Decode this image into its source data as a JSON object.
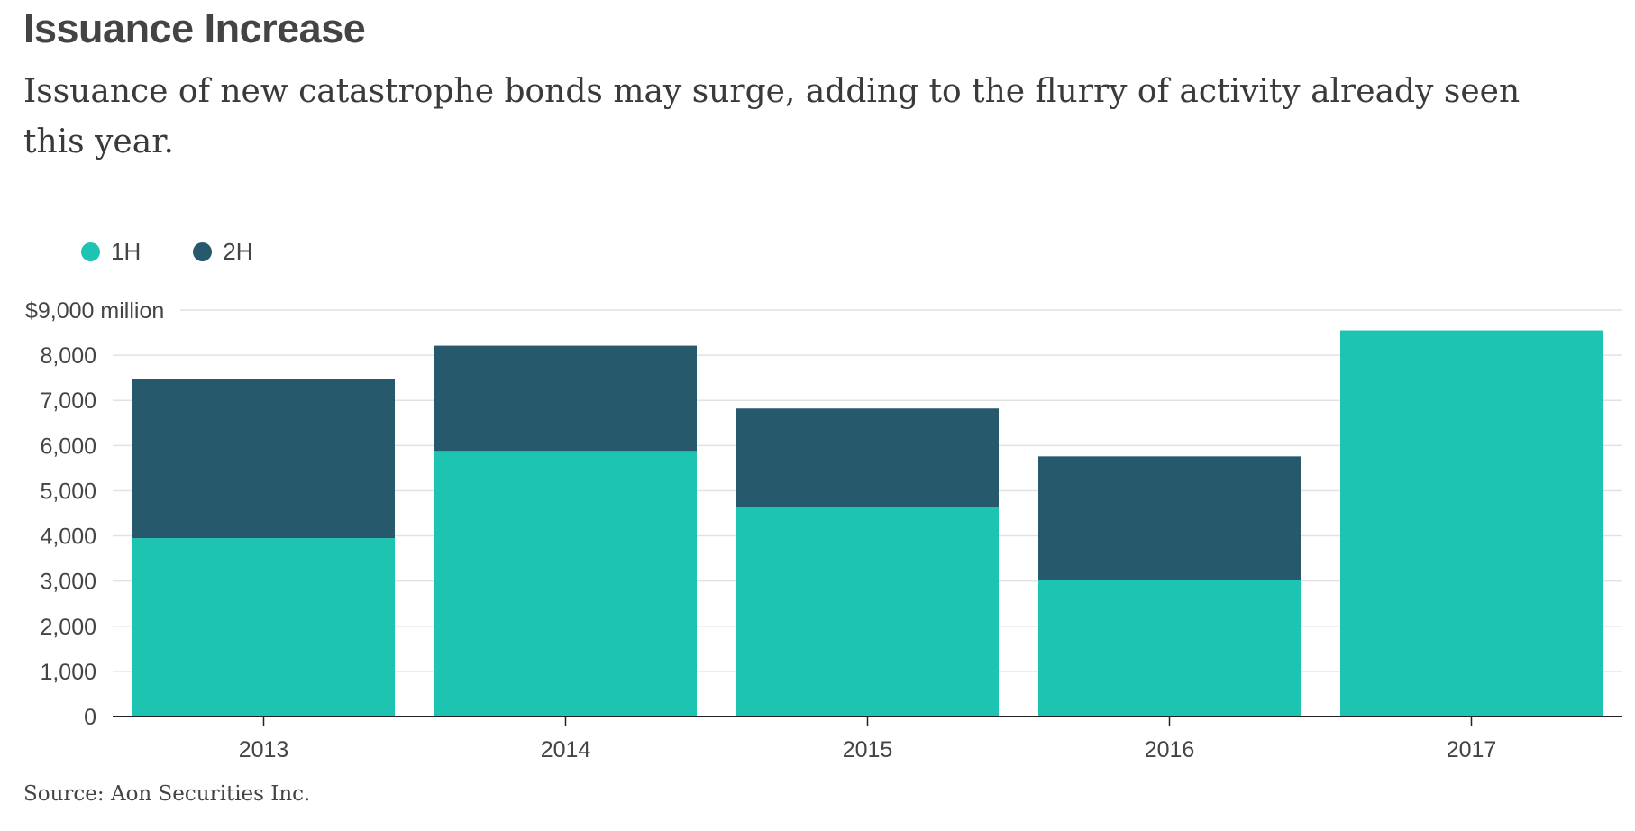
{
  "chart_data": {
    "type": "bar",
    "stacked": true,
    "title": "Issuance Increase",
    "subtitle": "Issuance of new catastrophe bonds may surge, adding to the flurry of activity already seen this year.",
    "source": "Source: Aon Securities Inc.",
    "categories": [
      "2013",
      "2014",
      "2015",
      "2016",
      "2017"
    ],
    "series": [
      {
        "name": "1H",
        "color": "#1dc4b1",
        "values": [
          3950,
          5880,
          4640,
          3020,
          8550
        ]
      },
      {
        "name": "2H",
        "color": "#27596d",
        "values": [
          3520,
          2330,
          2180,
          2740,
          0
        ]
      }
    ],
    "y_ticks": [
      {
        "value": 0,
        "label": "0"
      },
      {
        "value": 1000,
        "label": "1,000"
      },
      {
        "value": 2000,
        "label": "2,000"
      },
      {
        "value": 3000,
        "label": "3,000"
      },
      {
        "value": 4000,
        "label": "4,000"
      },
      {
        "value": 5000,
        "label": "5,000"
      },
      {
        "value": 6000,
        "label": "6,000"
      },
      {
        "value": 7000,
        "label": "7,000"
      },
      {
        "value": 8000,
        "label": "8,000"
      },
      {
        "value": 9000,
        "label": "$9,000 million"
      }
    ],
    "ylim": [
      0,
      9000
    ],
    "grid": true,
    "legend_position": "top-left"
  }
}
